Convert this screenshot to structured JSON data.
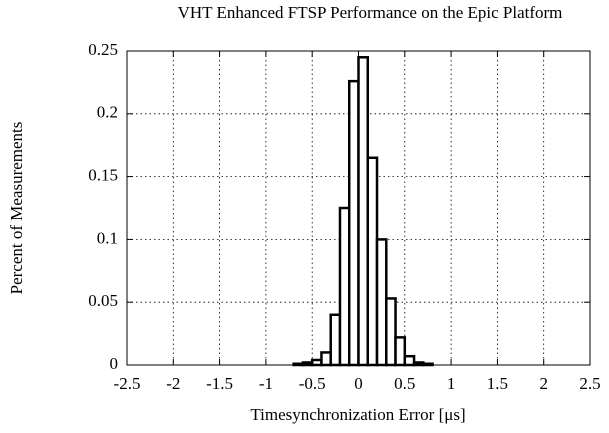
{
  "chart_data": {
    "type": "histogram",
    "title": "VHT Enhanced FTSP Performance on the Epic Platform",
    "xlabel": "Timesynchronization Error [μs]",
    "ylabel": "Percent of Measurements",
    "bins": [
      -2.5,
      -2.4,
      -2.3,
      -2.2,
      -2.1,
      -2,
      -1.9,
      -1.8,
      -1.7,
      -1.6,
      -1.5,
      -1.4,
      -1.3,
      -1.2,
      -1.1,
      -1,
      -0.9,
      -0.8,
      -0.7,
      -0.6,
      -0.5,
      -0.4,
      -0.3,
      -0.2,
      -0.1,
      0,
      0.1,
      0.2,
      0.3,
      0.4,
      0.5,
      0.6,
      0.7,
      0.8,
      0.9,
      1,
      1.1,
      1.2,
      1.3,
      1.4,
      1.5,
      1.6,
      1.7,
      1.8,
      1.9,
      2,
      2.1,
      2.2,
      2.3,
      2.4,
      2.5
    ],
    "values": [
      0,
      0,
      0,
      0,
      0,
      0,
      0,
      0,
      0,
      0,
      0,
      0,
      0,
      0,
      0,
      0,
      0,
      0,
      0.001,
      0.002,
      0.004,
      0.01,
      0.04,
      0.125,
      0.226,
      0.245,
      0.165,
      0.1,
      0.053,
      0.022,
      0.007,
      0.002,
      0.001,
      0,
      0,
      0,
      0,
      0,
      0,
      0,
      0,
      0,
      0,
      0,
      0,
      0,
      0,
      0,
      0,
      0
    ],
    "color": "#000000",
    "xlim": [
      -2.5,
      2.5
    ],
    "xticks": [
      -2.5,
      -2,
      -1.5,
      -1,
      -0.5,
      0,
      0.5,
      1,
      1.5,
      2,
      2.5
    ],
    "ylim": [
      0,
      0.25
    ],
    "yticks": [
      0,
      0.05,
      0.1,
      0.15,
      0.2,
      0.25
    ],
    "grid": true
  }
}
